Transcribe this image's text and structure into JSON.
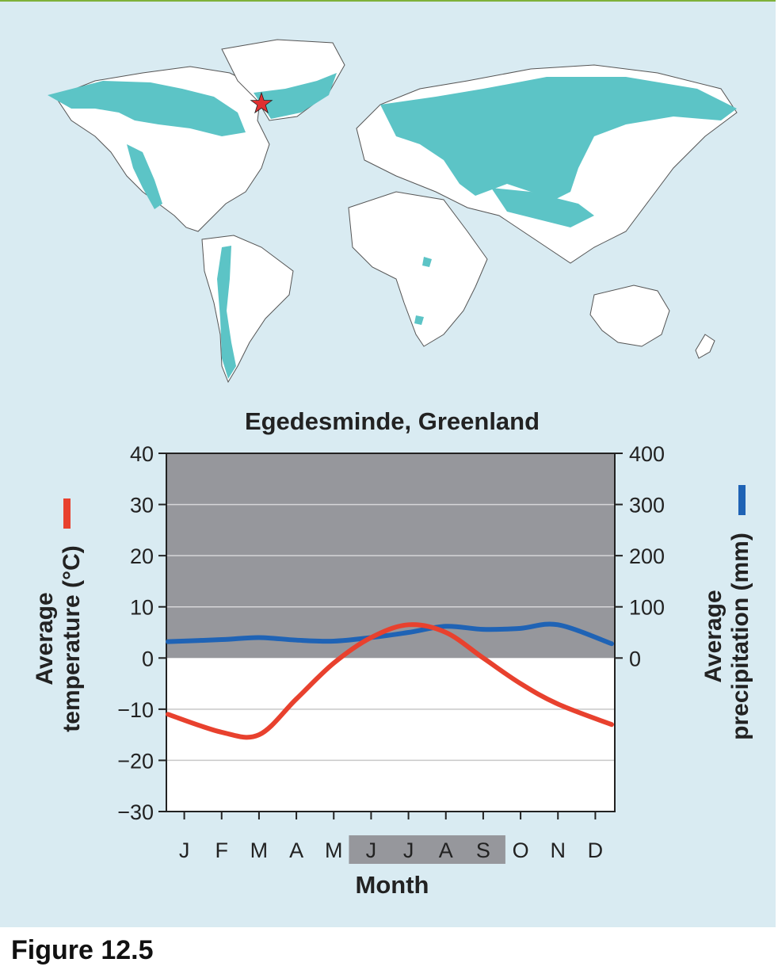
{
  "figure_label": "Figure 12.5",
  "map": {
    "type": "world-biome-map",
    "highlight_color": "#5cc4c6",
    "land_color": "#ffffff",
    "ocean_color": "#d9ebf2",
    "marker": {
      "icon": "star-icon",
      "color": "#e03030"
    }
  },
  "chart_data": {
    "type": "line",
    "title": "Egedesminde, Greenland",
    "xlabel": "Month",
    "categories": [
      "J",
      "F",
      "M",
      "A",
      "M",
      "J",
      "J",
      "A",
      "S",
      "O",
      "N",
      "D"
    ],
    "highlighted_months": [
      "J",
      "J",
      "A",
      "S"
    ],
    "y_left": {
      "label_line1": "Average",
      "label_line2": "temperature (°C)",
      "range": [
        -30,
        40
      ],
      "ticks": [
        "40",
        "30",
        "20",
        "10",
        "0",
        "−10",
        "−20",
        "−30"
      ]
    },
    "y_right": {
      "label_line1": "Average",
      "label_line2": "precipitation (mm)",
      "range": [
        -300,
        400
      ],
      "ticks": [
        "400",
        "300",
        "200",
        "100",
        "0"
      ]
    },
    "series": [
      {
        "key": "temperature",
        "axis": "left",
        "color": "#e8412e",
        "values": [
          -11,
          -14.5,
          -15,
          -8,
          -1,
          4,
          6.5,
          5,
          0,
          -5,
          -9,
          -13
        ]
      },
      {
        "key": "precipitation",
        "axis": "right",
        "color": "#1f63b5",
        "values": [
          32,
          36,
          40,
          35,
          33,
          40,
          50,
          62,
          56,
          58,
          65,
          28
        ]
      }
    ],
    "shaded_region_color": "#96979c",
    "grid": true
  }
}
